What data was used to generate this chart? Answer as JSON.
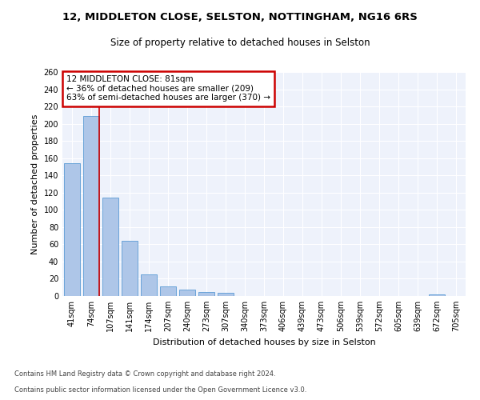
{
  "title1": "12, MIDDLETON CLOSE, SELSTON, NOTTINGHAM, NG16 6RS",
  "title2": "Size of property relative to detached houses in Selston",
  "xlabel": "Distribution of detached houses by size in Selston",
  "ylabel": "Number of detached properties",
  "footer1": "Contains HM Land Registry data © Crown copyright and database right 2024.",
  "footer2": "Contains public sector information licensed under the Open Government Licence v3.0.",
  "categories": [
    "41sqm",
    "74sqm",
    "107sqm",
    "141sqm",
    "174sqm",
    "207sqm",
    "240sqm",
    "273sqm",
    "307sqm",
    "340sqm",
    "373sqm",
    "406sqm",
    "439sqm",
    "473sqm",
    "506sqm",
    "539sqm",
    "572sqm",
    "605sqm",
    "639sqm",
    "672sqm",
    "705sqm"
  ],
  "values": [
    154,
    209,
    114,
    64,
    25,
    11,
    7,
    5,
    4,
    0,
    0,
    0,
    0,
    0,
    0,
    0,
    0,
    0,
    0,
    2,
    0
  ],
  "bar_color": "#aec6e8",
  "bar_edge_color": "#5b9bd5",
  "property_label": "12 MIDDLETON CLOSE: 81sqm",
  "annotation_line1": "← 36% of detached houses are smaller (209)",
  "annotation_line2": "63% of semi-detached houses are larger (370) →",
  "vline_color": "#cc0000",
  "box_color": "#cc0000",
  "background_color": "#eef2fb",
  "grid_color": "#ffffff",
  "fig_background": "#ffffff",
  "ylim": [
    0,
    260
  ],
  "yticks": [
    0,
    20,
    40,
    60,
    80,
    100,
    120,
    140,
    160,
    180,
    200,
    220,
    240,
    260
  ],
  "title1_fontsize": 9.5,
  "title2_fontsize": 8.5,
  "ylabel_fontsize": 8,
  "xlabel_fontsize": 8,
  "tick_fontsize": 7,
  "annotation_fontsize": 7.5,
  "footer_fontsize": 6.0
}
